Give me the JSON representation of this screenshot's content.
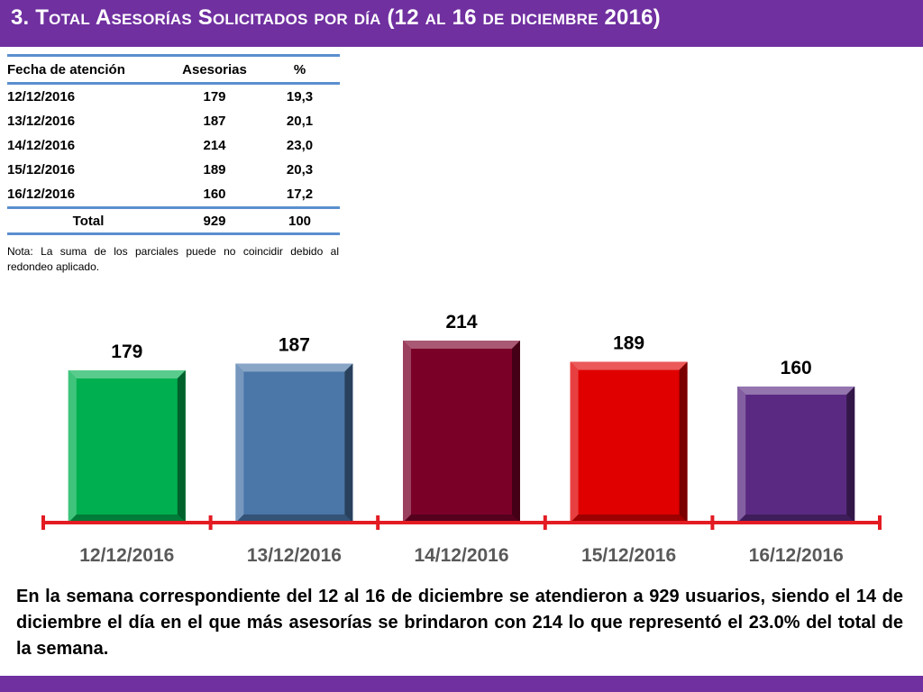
{
  "header": {
    "title": "3.  Total Asesorías Solicitados por día  (12 al 16 de diciembre 2016)"
  },
  "table": {
    "headers": [
      "Fecha de atención",
      "Asesorias",
      "%"
    ],
    "rows": [
      [
        "12/12/2016",
        "179",
        "19,3"
      ],
      [
        "13/12/2016",
        "187",
        "20,1"
      ],
      [
        "14/12/2016",
        "214",
        "23,0"
      ],
      [
        "15/12/2016",
        "189",
        "20,3"
      ],
      [
        "16/12/2016",
        "160",
        "17,2"
      ]
    ],
    "total": [
      "Total",
      "929",
      "100"
    ]
  },
  "note": "Nota: La suma de los parciales puede no coincidir debido al redondeo aplicado.",
  "chart_data": {
    "type": "bar",
    "categories": [
      "12/12/2016",
      "13/12/2016",
      "14/12/2016",
      "15/12/2016",
      "16/12/2016"
    ],
    "values": [
      179,
      187,
      214,
      189,
      160
    ],
    "colors": [
      "#00b050",
      "#4a76a8",
      "#7a0028",
      "#e00000",
      "#5a2a82"
    ],
    "title": "",
    "xlabel": "",
    "ylabel": "",
    "ylim": [
      0,
      214
    ],
    "axis_color": "#e31b23",
    "tick_label_color": "#595959"
  },
  "summary": "En la semana correspondiente del 12 al 16 de diciembre se atendieron a 929 usuarios, siendo el 14 de diciembre el día en el que más asesorías se brindaron con 214 lo que representó el 23.0% del total de la semana.",
  "colors": {
    "brand": "#7030a0",
    "table_rule": "#5b8fcf"
  }
}
